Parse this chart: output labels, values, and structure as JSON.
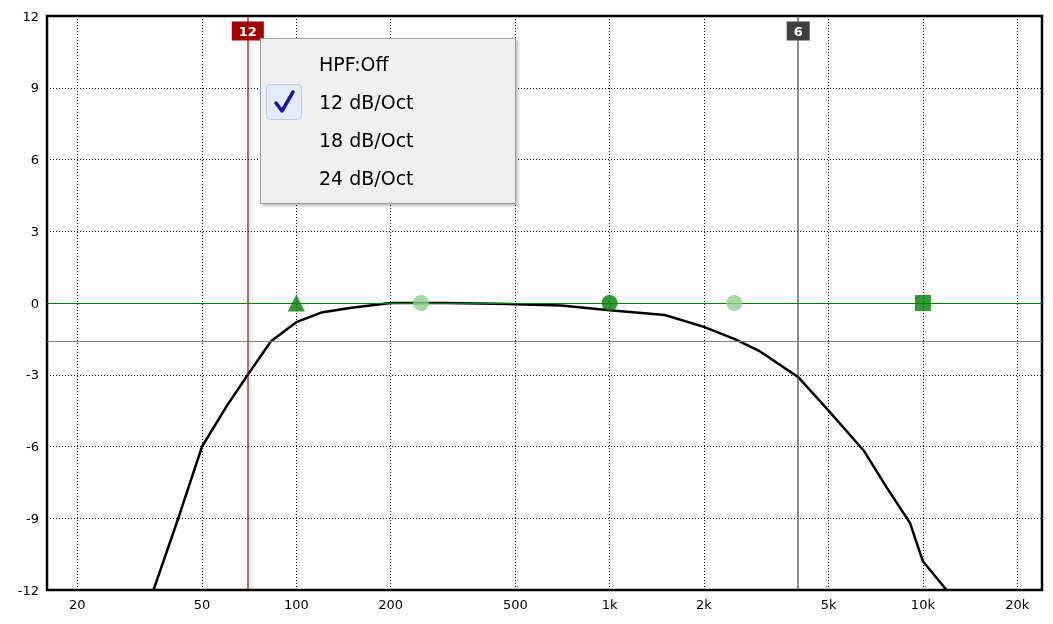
{
  "chart_data": {
    "type": "line",
    "log": "x",
    "xlim": [
      16,
      24000
    ],
    "ylim": [
      -12,
      12
    ],
    "xticks": [
      20,
      50,
      100,
      200,
      500,
      {
        "value": 1000,
        "label": "1k"
      },
      {
        "value": 2000,
        "label": "2k"
      },
      {
        "value": 5000,
        "label": "5k"
      },
      {
        "value": 10000,
        "label": "10k"
      },
      {
        "value": 20000,
        "label": "20k"
      }
    ],
    "yticks": [
      -12,
      -9,
      -6,
      -3,
      0,
      3,
      6,
      9,
      12
    ],
    "grid": true,
    "marker": "none",
    "line_style": "solid",
    "series": [
      {
        "color": "#000000",
        "x": [
          35,
          42,
          50,
          60,
          70,
          83,
          100,
          120,
          150,
          200,
          300,
          500,
          700,
          1000,
          1500,
          2000,
          2500,
          3000,
          4000,
          5000,
          6500,
          7650,
          9100,
          10000,
          11900
        ],
        "values": [
          -12,
          -9,
          -6,
          -4.3,
          -3,
          -1.6,
          -0.8,
          -0.4,
          -0.2,
          0,
          0,
          -0.05,
          -0.1,
          -0.3,
          -0.5,
          -1,
          -1.5,
          -2,
          -3.1,
          -4.5,
          -6.2,
          -7.7,
          -9.2,
          -10.8,
          -12
        ]
      },
      {
        "type": "scatter",
        "marker": "triangle",
        "color": "#008000",
        "x": [
          100
        ],
        "values": [
          0
        ]
      },
      {
        "type": "scatter",
        "marker": "circle",
        "color": "#8fd08f",
        "x": [
          250,
          2500
        ],
        "values": [
          0,
          0
        ]
      },
      {
        "type": "scatter",
        "marker": "circle",
        "color": "#008000",
        "x": [
          1000
        ],
        "values": [
          0
        ]
      },
      {
        "type": "scatter",
        "marker": "square",
        "color": "#008000",
        "x": [
          10000
        ],
        "values": [
          0
        ]
      }
    ],
    "ref_lines": [
      {
        "axis": "x",
        "value": 70,
        "color": "#a00000"
      },
      {
        "axis": "x",
        "value": 4000,
        "color": "#404040"
      },
      {
        "axis": "y",
        "value": -1.6,
        "color": "#808080"
      },
      {
        "axis": "y",
        "value": 0,
        "color": "#008000"
      }
    ],
    "annotations": [
      {
        "text": "12",
        "x": 70,
        "y": 12
      },
      {
        "text": "6",
        "x": 4000,
        "y": 12
      },
      "HPF:Off",
      "12 dB/Oct",
      "18 dB/Oct",
      "24 dB/Oct"
    ]
  }
}
